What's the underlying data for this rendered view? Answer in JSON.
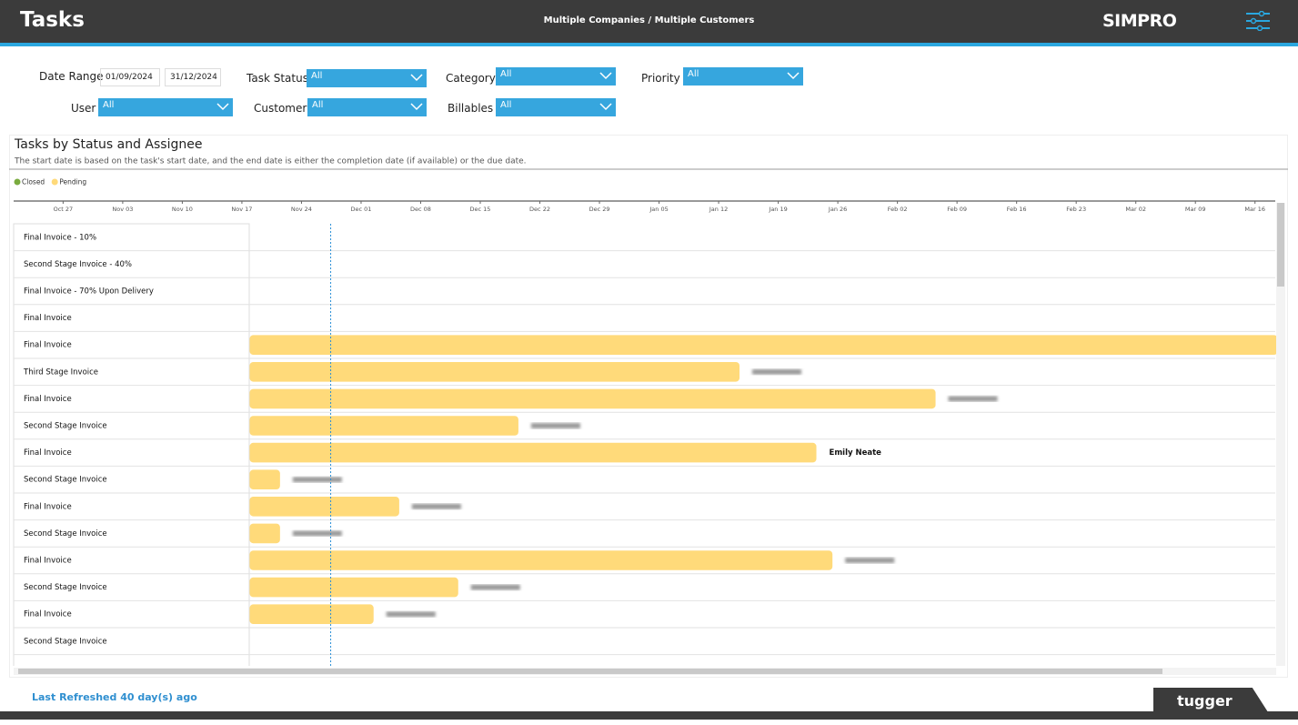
{
  "header": {
    "title": "Tasks",
    "scope": "Multiple Companies / Multiple Customers",
    "brand": "SIMPRO"
  },
  "filters": {
    "date_range": {
      "label": "Date Range",
      "from": "01/09/2024",
      "to": "31/12/2024"
    },
    "task_status": {
      "label": "Task Status",
      "value": "All"
    },
    "category": {
      "label": "Category",
      "value": "All"
    },
    "priority": {
      "label": "Priority",
      "value": "All"
    },
    "user": {
      "label": "User",
      "value": "All"
    },
    "customer": {
      "label": "Customer",
      "value": "All"
    },
    "billables": {
      "label": "Billables",
      "value": "All"
    }
  },
  "chart_data": {
    "type": "gantt",
    "title": "Tasks by Status and Assignee",
    "subtitle": "The start date is based on the task's start date, and the end date is either the completion date (if available) or the due date.",
    "categories": [
      "Final Invoice - 10%",
      "Second Stage Invoice - 40%",
      "Final Invoice - 70% Upon Delivery",
      "Final Invoice",
      "Final Invoice",
      "Third Stage Invoice",
      "Final Invoice",
      "Second Stage Invoice",
      "Final Invoice",
      "Second Stage Invoice",
      "Final Invoice",
      "Second Stage Invoice",
      "Final Invoice",
      "Second Stage Invoice",
      "Final Invoice",
      "Second Stage Invoice"
    ],
    "xlim": [
      -0.83,
      20.34
    ],
    "xticks": [
      {
        "value": 0,
        "label": "Oct 27"
      },
      {
        "value": 1,
        "label": "Nov 03"
      },
      {
        "value": 2,
        "label": "Nov 10"
      },
      {
        "value": 3,
        "label": "Nov 17"
      },
      {
        "value": 4,
        "label": "Nov 24"
      },
      {
        "value": 5,
        "label": "Dec 01"
      },
      {
        "value": 6,
        "label": "Dec 08"
      },
      {
        "value": 7,
        "label": "Dec 15"
      },
      {
        "value": 8,
        "label": "Dec 22"
      },
      {
        "value": 9,
        "label": "Dec 29"
      },
      {
        "value": 10,
        "label": "Jan 05"
      },
      {
        "value": 11,
        "label": "Jan 12"
      },
      {
        "value": 12,
        "label": "Jan 19"
      },
      {
        "value": 13,
        "label": "Jan 26"
      },
      {
        "value": 14,
        "label": "Feb 02"
      },
      {
        "value": 15,
        "label": "Feb 09"
      },
      {
        "value": 16,
        "label": "Feb 16"
      },
      {
        "value": 17,
        "label": "Feb 23"
      },
      {
        "value": 18,
        "label": "Mar 02"
      },
      {
        "value": 19,
        "label": "Mar 09"
      },
      {
        "value": 20,
        "label": "Mar 16"
      }
    ],
    "reference_line": 4.49,
    "series": [
      {
        "name": "Closed",
        "color": "#7aab3f",
        "start": [
          null,
          null,
          null,
          null,
          null,
          null,
          null,
          null,
          null,
          null,
          null,
          null,
          null,
          null,
          null,
          null
        ],
        "end": [
          null,
          null,
          null,
          null,
          null,
          null,
          null,
          null,
          null,
          null,
          null,
          null,
          null,
          null,
          null,
          null
        ]
      },
      {
        "name": "Pending",
        "color": "#ffda7a",
        "start": [
          null,
          null,
          null,
          null,
          3.13,
          3.13,
          3.13,
          3.13,
          3.13,
          3.13,
          3.13,
          3.13,
          3.13,
          3.13,
          3.13,
          null
        ],
        "end": [
          null,
          null,
          null,
          null,
          20.38,
          11.35,
          14.64,
          7.64,
          12.64,
          3.64,
          5.64,
          3.64,
          12.91,
          6.63,
          5.21,
          null
        ]
      }
    ],
    "assignees": [
      null,
      null,
      null,
      null,
      null,
      null,
      null,
      null,
      "Emily Neate",
      null,
      null,
      null,
      null,
      null,
      null,
      null
    ]
  },
  "footer": {
    "refreshed": "Last Refreshed 40 day(s) ago",
    "logo": "tugger"
  }
}
